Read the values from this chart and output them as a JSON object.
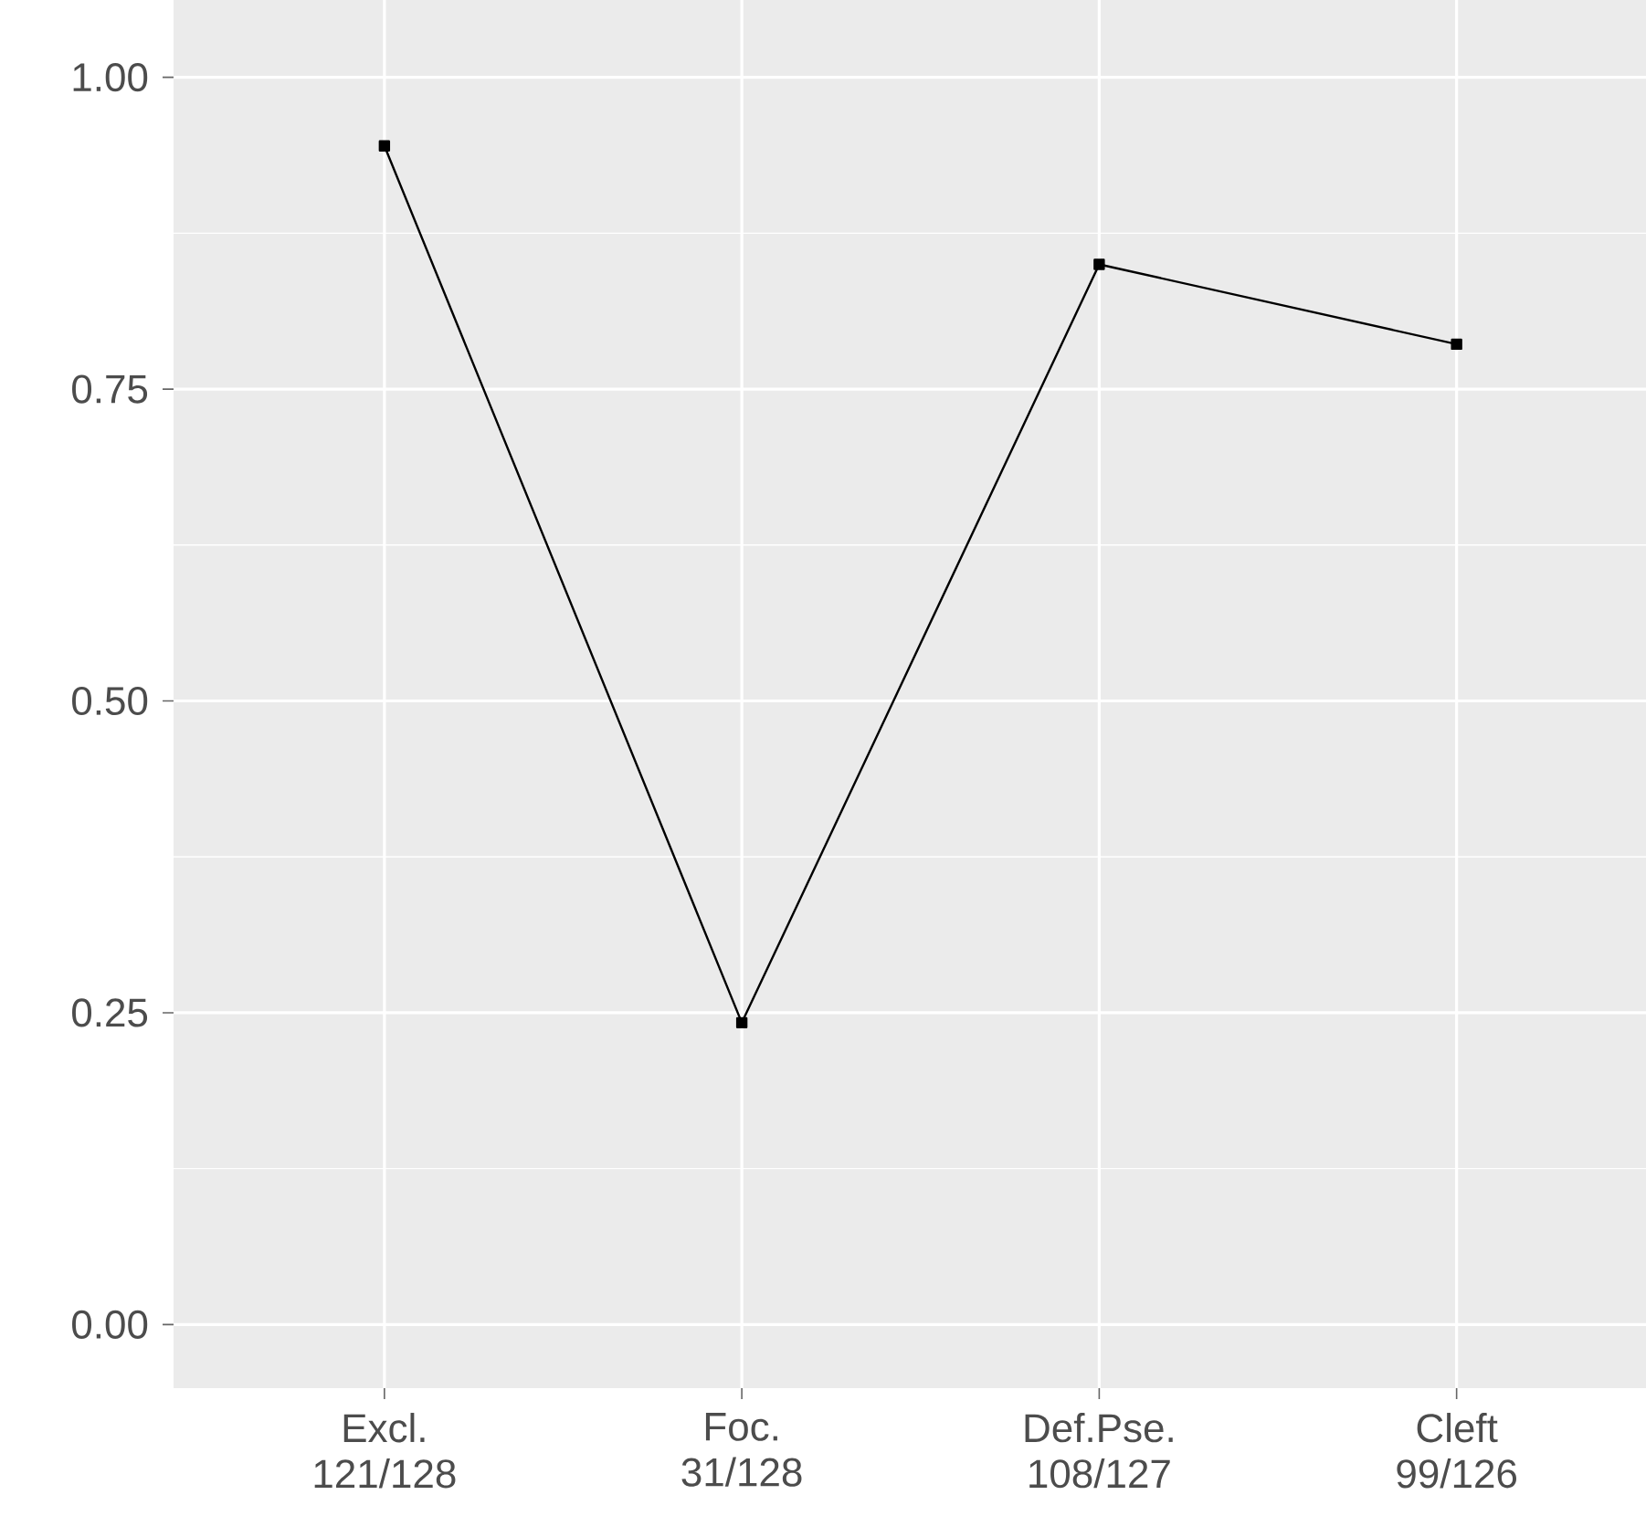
{
  "chart_data": {
    "type": "line",
    "categories": [
      "Excl. 121/128",
      "Foc. 31/128",
      "Def.Pse. 108/127",
      "Cleft 99/126"
    ],
    "series": [
      {
        "color": "#000000",
        "values": [
          0.945,
          0.242,
          0.85,
          0.786
        ]
      }
    ],
    "ylim": [
      -0.051,
      1.062
    ],
    "yticks": [
      {
        "value": 0,
        "label": "0.00"
      },
      {
        "value": 0.25,
        "label": "0.25"
      },
      {
        "value": 0.5,
        "label": "0.50"
      },
      {
        "value": 0.75,
        "label": "0.75"
      },
      {
        "value": 1,
        "label": "1.00"
      }
    ],
    "grid": true,
    "marker": "square",
    "line_style": "solid"
  }
}
